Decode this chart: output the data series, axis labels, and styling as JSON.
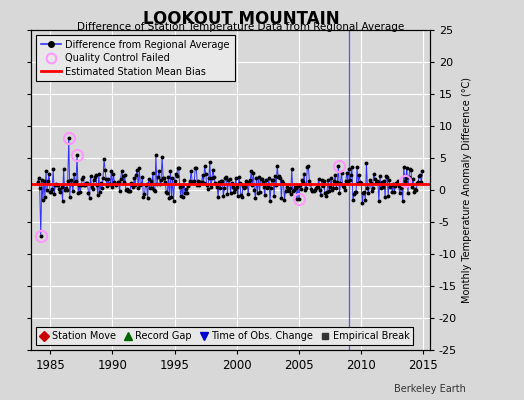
{
  "title": "LOOKOUT MOUNTAIN",
  "subtitle": "Difference of Station Temperature Data from Regional Average",
  "ylabel_right": "Monthly Temperature Anomaly Difference (°C)",
  "xlim": [
    1983.5,
    2015.5
  ],
  "ylim": [
    -25,
    25
  ],
  "yticks": [
    -25,
    -20,
    -15,
    -10,
    -5,
    0,
    5,
    10,
    15,
    20,
    25
  ],
  "ytick_labels": [
    "-25",
    "-20",
    "-15",
    "-10",
    "-5",
    "0",
    "5",
    "10",
    "15",
    "20",
    "25"
  ],
  "xticks": [
    1985,
    1990,
    1995,
    2000,
    2005,
    2010,
    2015
  ],
  "fig_bg_color": "#d8d8d8",
  "plot_bg_color": "#d8d8d8",
  "grid_color": "#ffffff",
  "main_line_color": "#3333ff",
  "main_dot_color": "#000000",
  "bias_line_color": "#ff0000",
  "qc_fail_color": "#ff99ff",
  "bias_value": 1.0,
  "empirical_break_x": 2009.0,
  "watermark": "Berkeley Earth",
  "legend1_labels": [
    "Difference from Regional Average",
    "Quality Control Failed",
    "Estimated Station Mean Bias"
  ],
  "legend2_labels": [
    "Station Move",
    "Record Gap",
    "Time of Obs. Change",
    "Empirical Break"
  ],
  "legend2_colors": [
    "#cc0000",
    "#006600",
    "#0000cc",
    "#333333"
  ],
  "legend2_markers": [
    "D",
    "^",
    "v",
    "s"
  ]
}
